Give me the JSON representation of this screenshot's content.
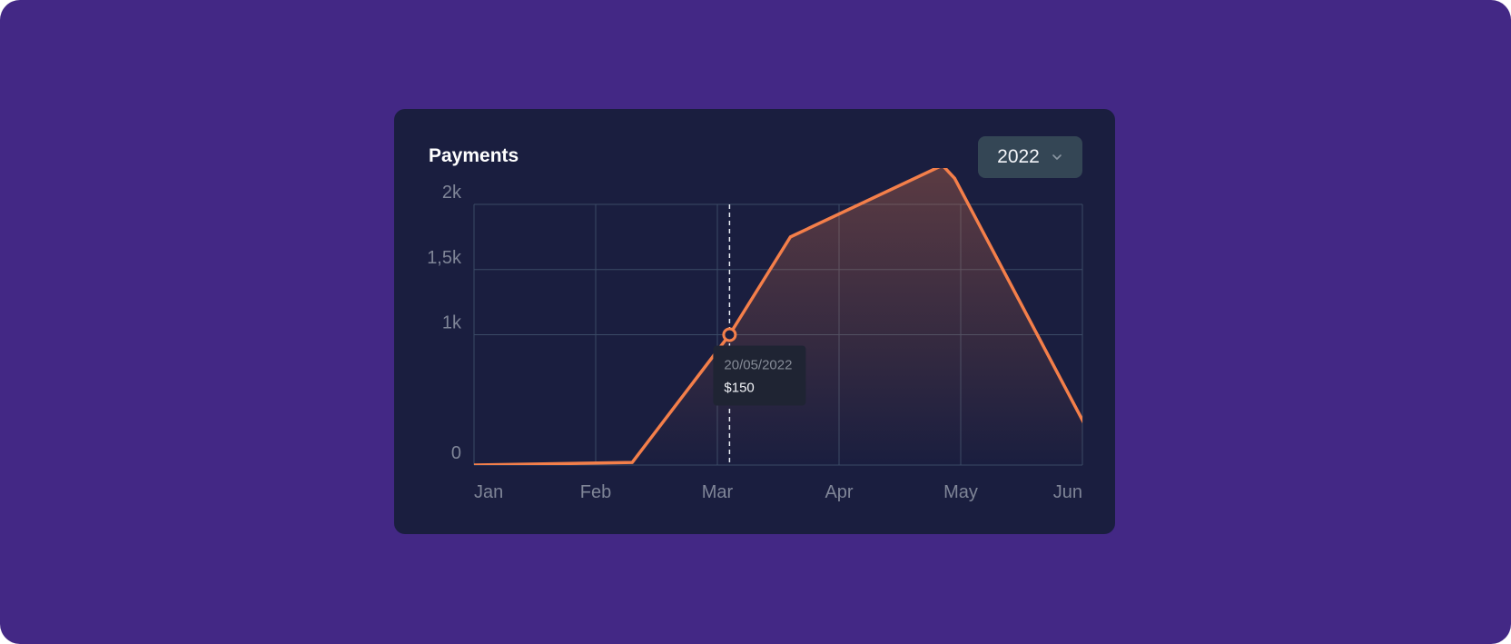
{
  "card": {
    "title": "Payments",
    "year_select": {
      "value": "2022",
      "icon": "chevron-down-icon"
    }
  },
  "tooltip": {
    "date": "20/05/2022",
    "value": "$150"
  },
  "chart_data": {
    "type": "area",
    "title": "Payments",
    "categories": [
      "Jan",
      "Feb",
      "Mar",
      "Apr",
      "May",
      "Jun"
    ],
    "y_tick_labels": [
      "0",
      "1k",
      "1,5k",
      "2k"
    ],
    "y_ticks": [
      0,
      1000,
      1500,
      2000
    ],
    "ylim": [
      0,
      2000
    ],
    "xlim": [
      0,
      5
    ],
    "grid": true,
    "line_color": "#f47f4a",
    "series": [
      {
        "x": [
          0,
          1.3,
          2.1,
          2.6,
          3.85,
          3.95,
          5.15
        ],
        "values": [
          0,
          20,
          1000,
          1750,
          2300,
          2200,
          80
        ]
      }
    ],
    "highlight": {
      "x": 2.1,
      "y": 1000
    }
  }
}
